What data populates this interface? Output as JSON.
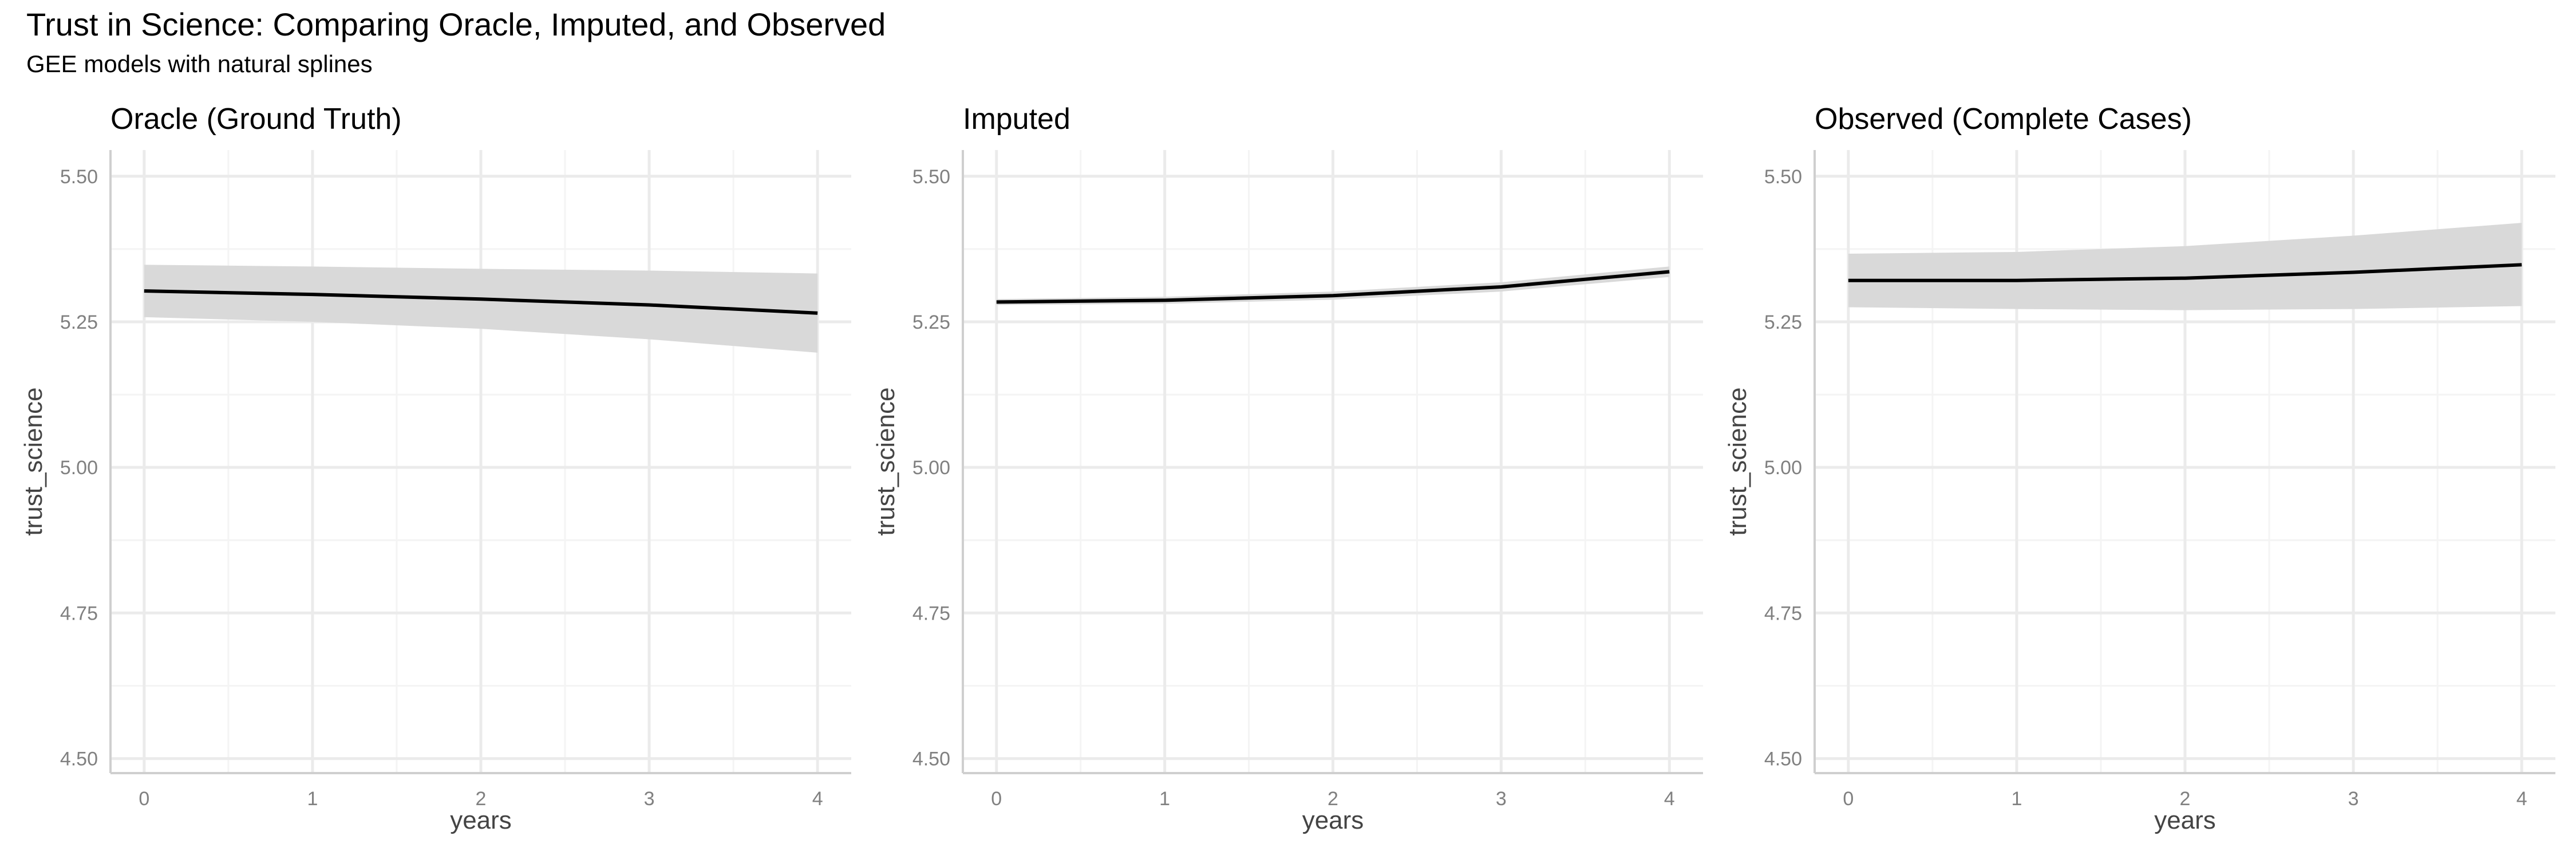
{
  "figure": {
    "title": "Trust in Science: Comparing Oracle, Imputed, and Observed",
    "subtitle": "GEE models with natural splines"
  },
  "colors": {
    "line": "#000000",
    "ribbon": "#d9d9d9",
    "grid_major": "#ebebeb",
    "grid_minor": "#f4f4f4",
    "tick_label": "#808080",
    "axis_title": "#444444"
  },
  "chart_data": [
    {
      "type": "line",
      "title": "Oracle (Ground Truth)",
      "xlabel": "years",
      "ylabel": "trust_science",
      "xlim": [
        -0.2,
        4.2
      ],
      "ylim": [
        4.475,
        5.545
      ],
      "xticks": [
        0,
        1,
        2,
        3,
        4
      ],
      "yticks": [
        4.5,
        4.75,
        5.0,
        5.25,
        5.5
      ],
      "ytick_labels": [
        "4.50",
        "4.75",
        "5.00",
        "5.25",
        "5.50"
      ],
      "grid": true,
      "series": [
        {
          "x": [
            0,
            1,
            2,
            3,
            4
          ],
          "y": [
            5.303,
            5.297,
            5.289,
            5.279,
            5.265
          ],
          "lower": [
            5.258,
            5.25,
            5.238,
            5.22,
            5.197
          ],
          "upper": [
            5.348,
            5.345,
            5.341,
            5.338,
            5.333
          ]
        }
      ]
    },
    {
      "type": "line",
      "title": "Imputed",
      "xlabel": "years",
      "ylabel": "trust_science",
      "xlim": [
        -0.2,
        4.2
      ],
      "ylim": [
        4.475,
        5.545
      ],
      "xticks": [
        0,
        1,
        2,
        3,
        4
      ],
      "yticks": [
        4.5,
        4.75,
        5.0,
        5.25,
        5.5
      ],
      "ytick_labels": [
        "4.50",
        "4.75",
        "5.00",
        "5.25",
        "5.50"
      ],
      "grid": true,
      "series": [
        {
          "x": [
            0,
            1,
            2,
            3,
            4
          ],
          "y": [
            5.284,
            5.287,
            5.295,
            5.31,
            5.336
          ],
          "lower": [
            5.279,
            5.281,
            5.288,
            5.302,
            5.327
          ],
          "upper": [
            5.289,
            5.293,
            5.302,
            5.318,
            5.345
          ]
        }
      ]
    },
    {
      "type": "line",
      "title": "Observed (Complete Cases)",
      "xlabel": "years",
      "ylabel": "trust_science",
      "xlim": [
        -0.2,
        4.2
      ],
      "ylim": [
        4.475,
        5.545
      ],
      "xticks": [
        0,
        1,
        2,
        3,
        4
      ],
      "yticks": [
        4.5,
        4.75,
        5.0,
        5.25,
        5.5
      ],
      "ytick_labels": [
        "4.50",
        "4.75",
        "5.00",
        "5.25",
        "5.50"
      ],
      "grid": true,
      "series": [
        {
          "x": [
            0,
            1,
            2,
            3,
            4
          ],
          "y": [
            5.321,
            5.321,
            5.325,
            5.335,
            5.348
          ],
          "lower": [
            5.275,
            5.272,
            5.27,
            5.272,
            5.277
          ],
          "upper": [
            5.367,
            5.37,
            5.38,
            5.398,
            5.42
          ]
        }
      ]
    }
  ]
}
